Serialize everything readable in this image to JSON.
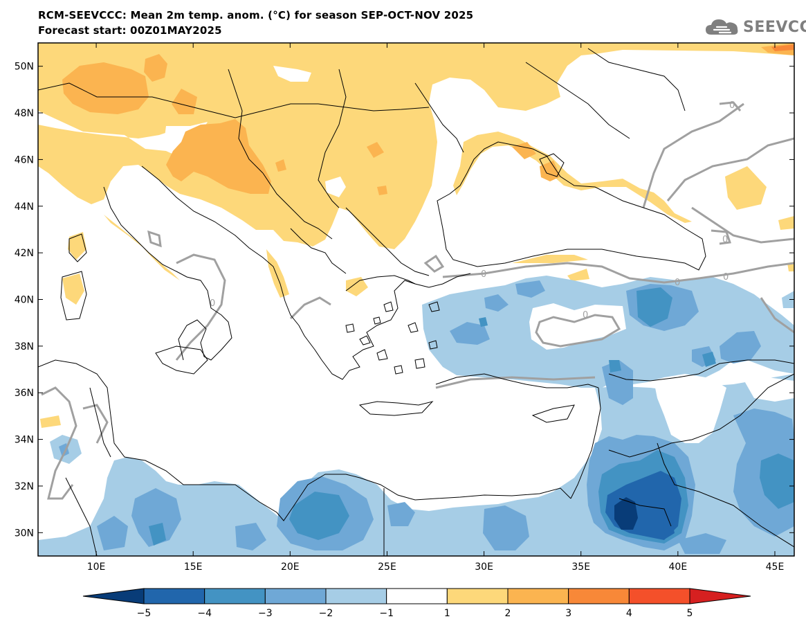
{
  "header": {
    "title": "RCM-SEEVCCC: Mean 2m temp. anom. (°C) for season SEP-OCT-NOV 2025",
    "subtitle": "Forecast start: 00Z01MAY2025",
    "logo_text": "SEEVCCC",
    "logo_icon": "cloud-icon"
  },
  "map": {
    "type": "contour-map",
    "region": "Eastern Mediterranean / Southeastern Europe",
    "lon_range": [
      7,
      46
    ],
    "lat_range": [
      29,
      51
    ],
    "lat_ticks": [
      "50N",
      "48N",
      "46N",
      "44N",
      "42N",
      "40N",
      "38N",
      "36N",
      "34N",
      "32N",
      "30N"
    ],
    "lat_values": [
      50,
      48,
      46,
      44,
      42,
      40,
      38,
      36,
      34,
      32,
      30
    ],
    "lon_ticks": [
      "10E",
      "15E",
      "20E",
      "25E",
      "30E",
      "35E",
      "40E",
      "45E"
    ],
    "lon_values": [
      10,
      15,
      20,
      25,
      30,
      35,
      40,
      45
    ],
    "contour_label": "0",
    "colors": {
      "land_outline": "#000000",
      "contour_line": "#a0a0a0"
    }
  },
  "colorbar": {
    "labels": [
      "−5",
      "−4",
      "−3",
      "−2",
      "−1",
      "1",
      "2",
      "3",
      "4",
      "5"
    ],
    "colors": [
      "#083c78",
      "#2166ac",
      "#4393c3",
      "#6fa8d6",
      "#a6cde6",
      "#ffffff",
      "#fdd87a",
      "#fbb450",
      "#f88838",
      "#f4502a",
      "#d62020"
    ]
  }
}
